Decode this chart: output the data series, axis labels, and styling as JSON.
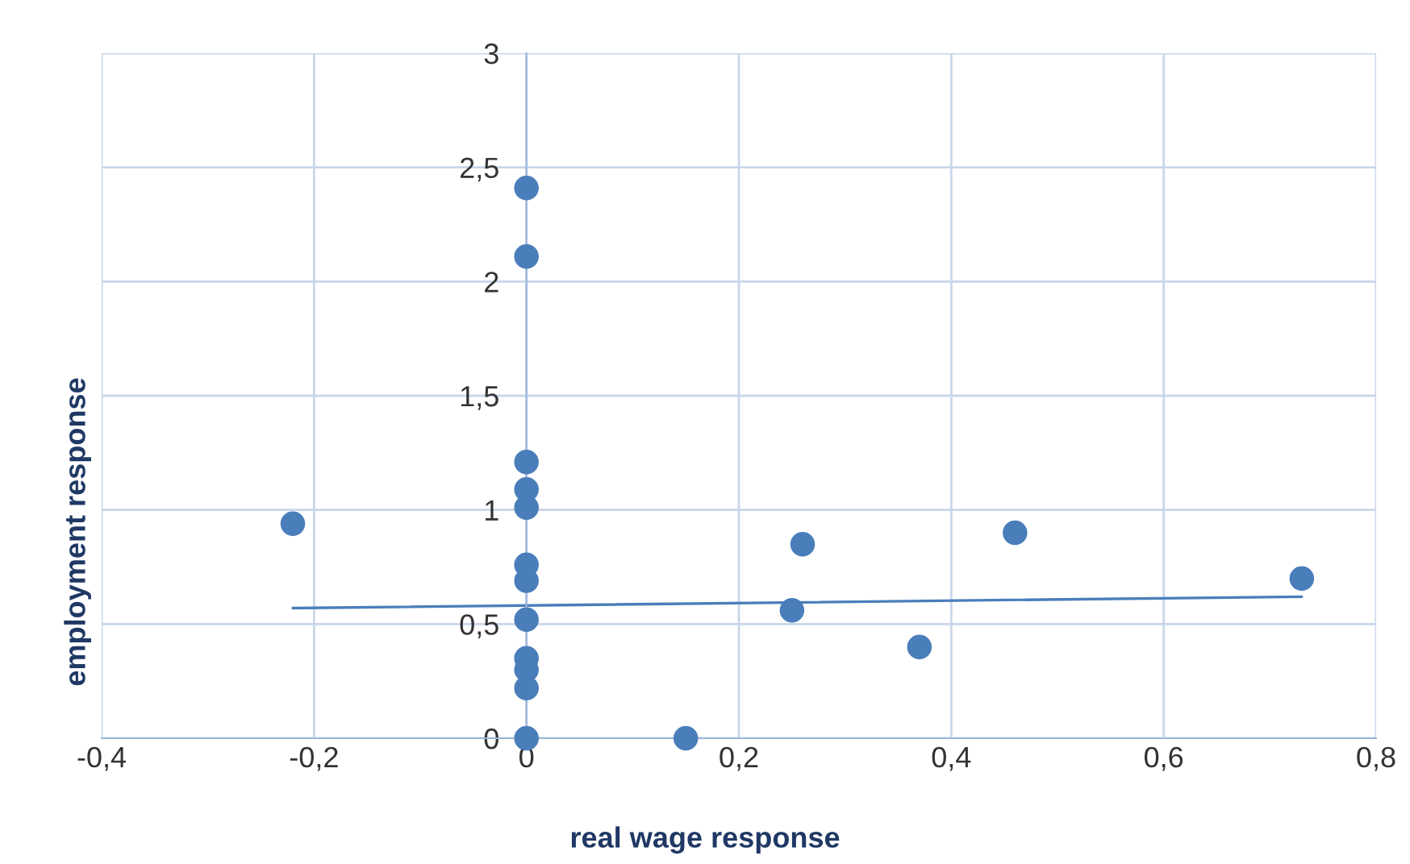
{
  "chart_data": {
    "type": "scatter",
    "xlabel": "real wage response",
    "ylabel": "employment response",
    "series": [
      {
        "color": "#4a7ebb",
        "marker": "circle",
        "x": [
          -0.22,
          0,
          0,
          0,
          0,
          0,
          0,
          0,
          0,
          0,
          0,
          0,
          0,
          0.15,
          0.25,
          0.26,
          0.37,
          0.46,
          0.73
        ],
        "values": [
          0.94,
          2.41,
          2.11,
          1.21,
          1.09,
          1.01,
          0.76,
          0.69,
          0.52,
          0.35,
          0.3,
          0.22,
          0,
          0,
          0.56,
          0.85,
          0.4,
          0.9,
          0.7
        ]
      },
      {
        "type": "line",
        "color": "#4a7ebb",
        "x": [
          -0.22,
          0.73
        ],
        "values": [
          0.57,
          0.62
        ]
      }
    ],
    "xlim": [
      -0.4,
      0.8
    ],
    "ylim": [
      0,
      3
    ],
    "xticks": [
      {
        "value": -0.4,
        "label": "-0,4"
      },
      {
        "value": -0.2,
        "label": "-0,2"
      },
      0,
      {
        "value": 0.2,
        "label": "0,2"
      },
      {
        "value": 0.4,
        "label": "0,4"
      },
      {
        "value": 0.6,
        "label": "0,6"
      },
      {
        "value": 0.8,
        "label": "0,8"
      }
    ],
    "yticks": [
      0,
      {
        "value": 0.5,
        "label": "0,5"
      },
      1,
      {
        "value": 1.5,
        "label": "1,5"
      },
      2,
      {
        "value": 2.5,
        "label": "2,5"
      },
      3
    ],
    "grid": true,
    "legend": false
  }
}
